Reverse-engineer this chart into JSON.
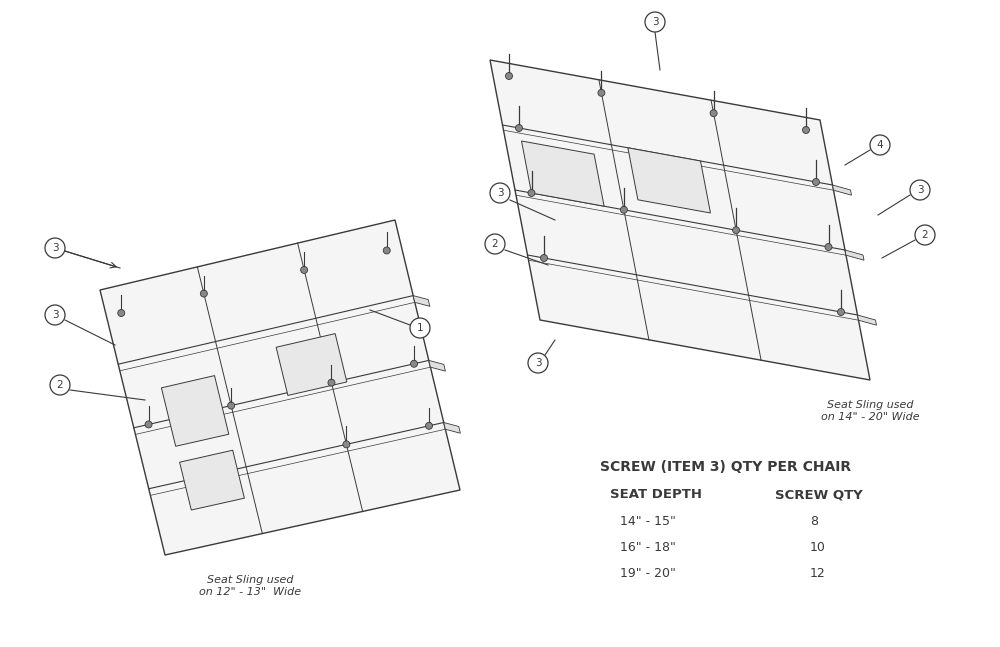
{
  "bg_color": "#ffffff",
  "line_color": "#3a3a3a",
  "fill_color": "#f5f5f5",
  "table_title": "SCREW (ITEM 3) QTY PER CHAIR",
  "table_col1_header": "SEAT DEPTH",
  "table_col2_header": "SCREW QTY",
  "table_rows": [
    [
      "14\" - 15\"",
      "8"
    ],
    [
      "16\" - 18\"",
      "10"
    ],
    [
      "19\" - 20\"",
      "12"
    ]
  ],
  "label_left_sling": "Seat Sling used\non 12\" - 13\"  Wide",
  "label_right_sling": "Seat Sling used\non 14\" - 20\" Wide"
}
